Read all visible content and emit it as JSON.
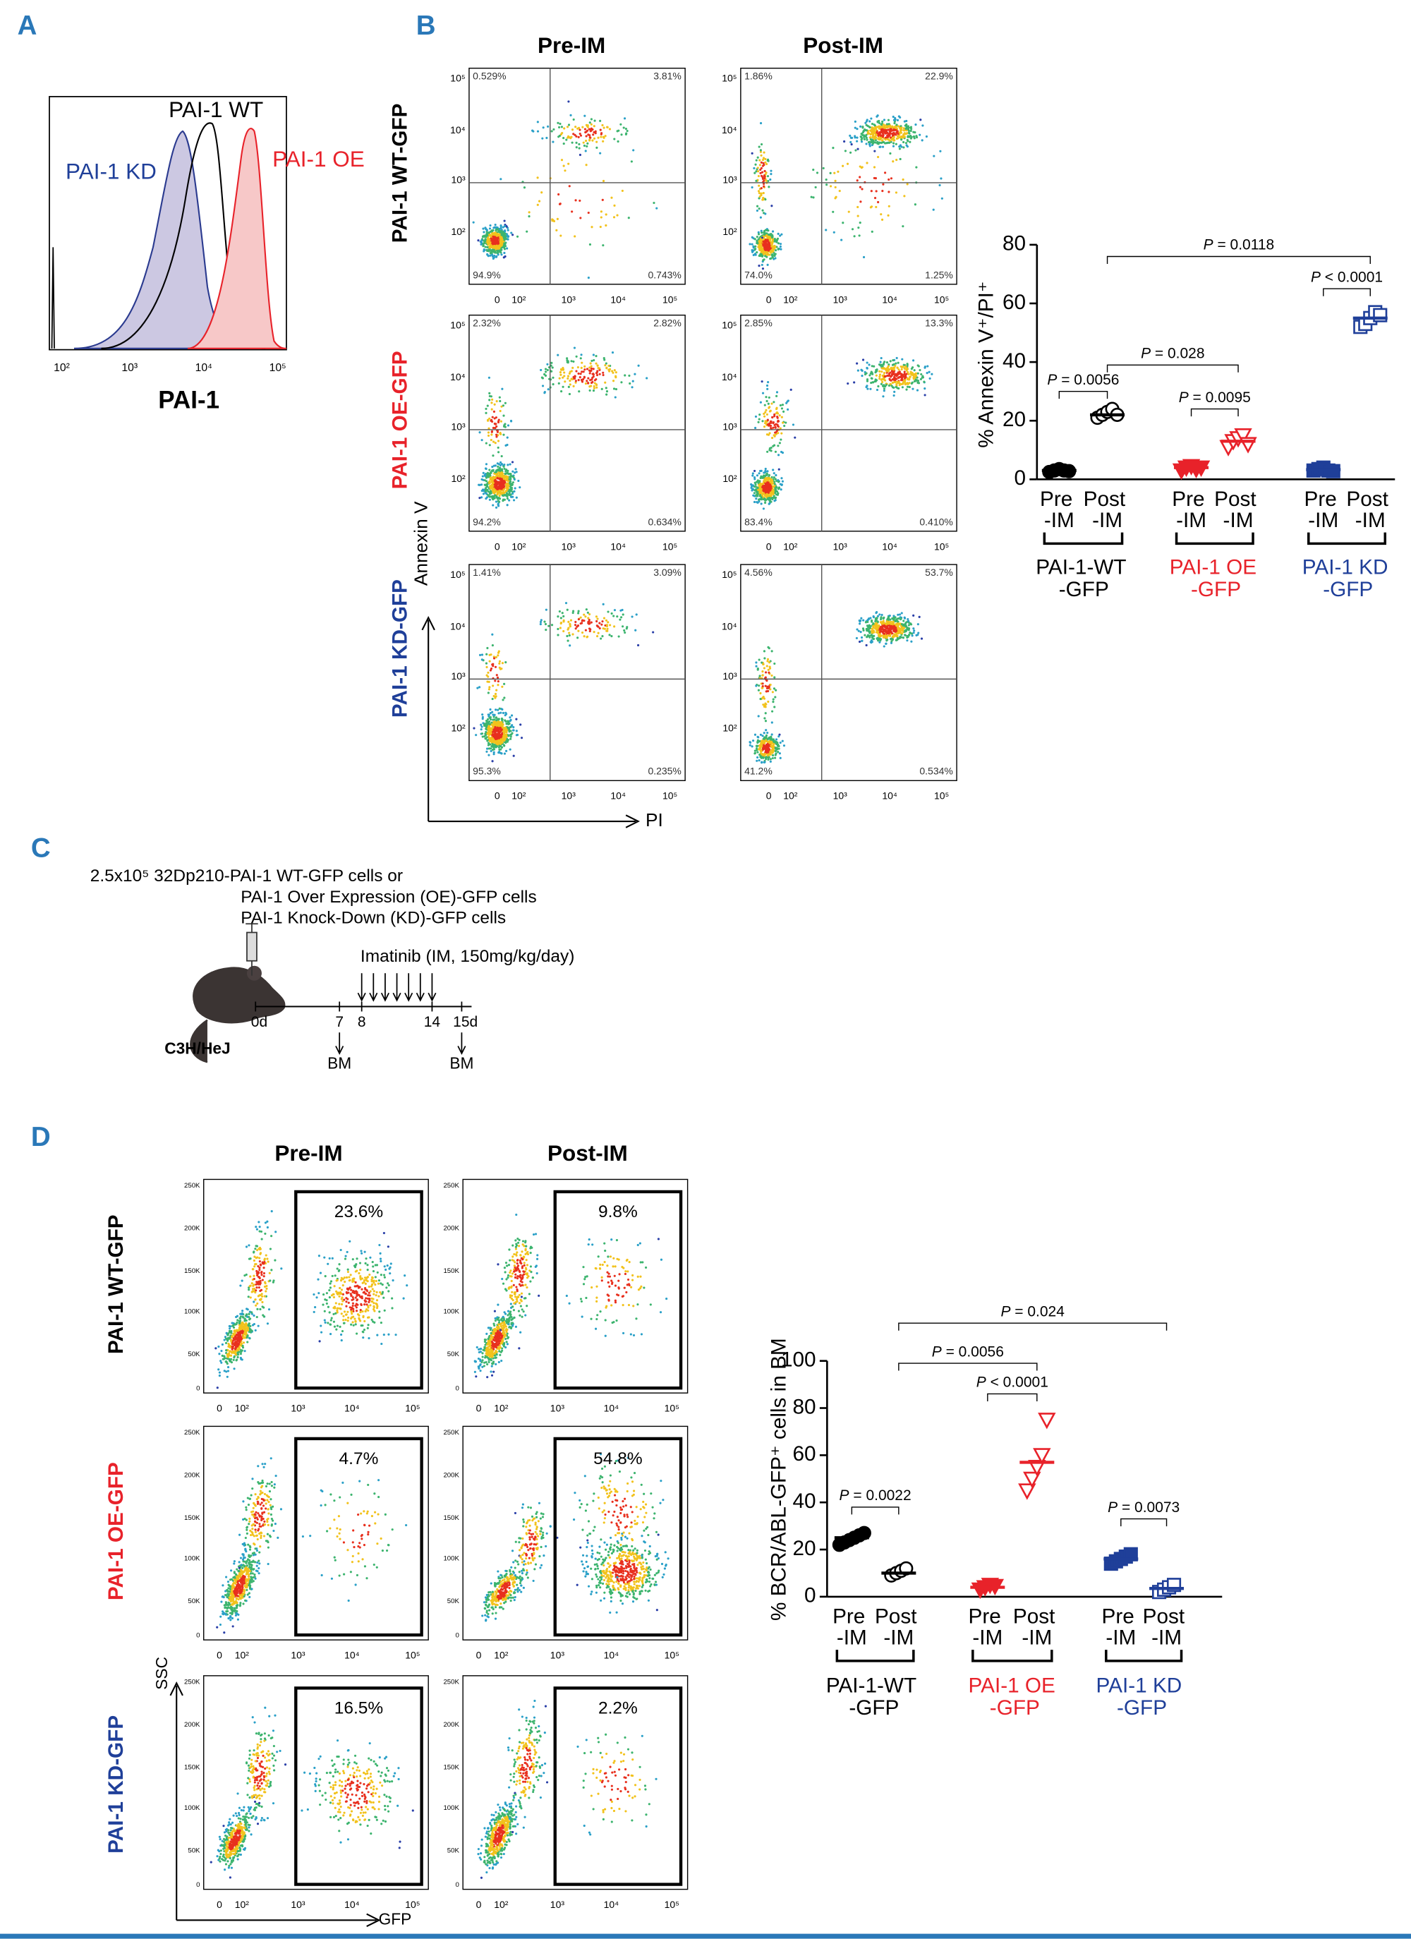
{
  "panel_labels": [
    "A",
    "B",
    "C",
    "D"
  ],
  "panel_a": {
    "legend": [
      "PAI-1 WT",
      "PAI-1 KD",
      "PAI-1 OE"
    ],
    "legend_colors": [
      "#000000",
      "#1f3f99",
      "#e8222a"
    ],
    "x_label": "PAI-1",
    "x_ticks": [
      "10²",
      "10³",
      "10⁴",
      "10⁵"
    ]
  },
  "panel_b": {
    "column_titles": [
      "Pre-IM",
      "Post-IM"
    ],
    "row_labels": [
      "PAI-1 WT-GFP",
      "PAI-1 OE-GFP",
      "PAI-1 KD-GFP"
    ],
    "row_colors": [
      "#000000",
      "#e8222a",
      "#1f3f99"
    ],
    "y_label": "Annexin V",
    "x_label": "PI",
    "y_ticks": [
      "10⁵",
      "10⁴",
      "10³",
      "10²"
    ],
    "x_ticks": [
      "0",
      "10²",
      "10³",
      "10⁴",
      "10⁵"
    ],
    "quadrants": [
      [
        "0.529%",
        "3.81%",
        "94.9%",
        "0.743%"
      ],
      [
        "1.86%",
        "22.9%",
        "74.0%",
        "1.25%"
      ],
      [
        "2.32%",
        "2.82%",
        "94.2%",
        "0.634%"
      ],
      [
        "2.85%",
        "13.3%",
        "83.4%",
        "0.410%"
      ],
      [
        "1.41%",
        "3.09%",
        "95.3%",
        "0.235%"
      ],
      [
        "4.56%",
        "53.7%",
        "41.2%",
        "0.534%"
      ]
    ]
  },
  "panel_c": {
    "lines": [
      "2.5x10⁵ 32Dp210-PAI-1 WT-GFP cells or",
      "PAI-1 Over Expression (OE)-GFP cells",
      "PAI-1 Knock-Down (KD)-GFP cells"
    ],
    "treatment": "Imatinib (IM, 150mg/kg/day)",
    "days": [
      "0d",
      "7",
      "8",
      "14",
      "15d"
    ],
    "samples": [
      "BM",
      "BM"
    ],
    "strain": "C3H/HeJ"
  },
  "panel_d": {
    "column_titles": [
      "Pre-IM",
      "Post-IM"
    ],
    "row_labels": [
      "PAI-1 WT-GFP",
      "PAI-1 OE-GFP",
      "PAI-1 KD-GFP"
    ],
    "row_colors": [
      "#000000",
      "#e8222a",
      "#1f3f99"
    ],
    "y_label": "SSC",
    "x_label": "GFP",
    "y_ticks": [
      "250K",
      "200K",
      "150K",
      "100K",
      "50K",
      "0"
    ],
    "x_ticks": [
      "0",
      "10²",
      "10³",
      "10⁴",
      "10⁵"
    ],
    "gates": [
      "23.6%",
      "9.8%",
      "4.7%",
      "54.8%",
      "16.5%",
      "2.2%"
    ]
  },
  "chart_data": [
    {
      "type": "scatter",
      "y_label": "% Annexin V⁺/PI⁺",
      "categories": [
        "Pre -IM",
        "Post -IM",
        "Pre -IM",
        "Post -IM",
        "Pre -IM",
        "Post -IM"
      ],
      "groups": [
        {
          "name": "PAI-1-WT -GFP",
          "color": "#000000"
        },
        {
          "name": "PAI-1 OE -GFP",
          "color": "#e8222a"
        },
        {
          "name": "PAI-1 KD -GFP",
          "color": "#1f3f99"
        }
      ],
      "ylim": [
        0,
        80
      ],
      "yticks": [
        0,
        20,
        40,
        60,
        80
      ],
      "series": [
        {
          "color": "#000000",
          "marker": "circle",
          "filled": true,
          "values": [
            2.5,
            3,
            3.5,
            3,
            2.8
          ],
          "mean": 3
        },
        {
          "color": "#000000",
          "marker": "circle",
          "filled": false,
          "values": [
            21,
            22,
            23,
            24,
            22
          ],
          "mean": 22
        },
        {
          "color": "#e8222a",
          "marker": "triangle",
          "filled": true,
          "values": [
            3,
            4,
            4.5,
            3.5,
            4
          ],
          "mean": 4
        },
        {
          "color": "#e8222a",
          "marker": "triangle",
          "filled": false,
          "values": [
            11,
            13,
            14,
            15,
            12
          ],
          "mean": 13
        },
        {
          "color": "#1f3f99",
          "marker": "square",
          "filled": true,
          "values": [
            3,
            3.5,
            4,
            3,
            2.8
          ],
          "mean": 3.3
        },
        {
          "color": "#1f3f99",
          "marker": "square",
          "filled": false,
          "values": [
            52,
            53,
            55,
            57,
            56
          ],
          "mean": 55
        }
      ],
      "annotations": [
        "P = 0.0056",
        "P = 0.0095",
        "P = 0.028",
        "P < 0.0001",
        "P = 0.0118"
      ]
    },
    {
      "type": "scatter",
      "y_label": "% BCR/ABL-GFP⁺ cells in BM",
      "categories": [
        "Pre -IM",
        "Post -IM",
        "Pre -IM",
        "Post -IM",
        "Pre -IM",
        "Post -IM"
      ],
      "groups": [
        {
          "name": "PAI-1-WT -GFP",
          "color": "#000000"
        },
        {
          "name": "PAI-1 OE -GFP",
          "color": "#e8222a"
        },
        {
          "name": "PAI-1 KD -GFP",
          "color": "#1f3f99"
        }
      ],
      "ylim": [
        0,
        100
      ],
      "yticks": [
        0,
        20,
        40,
        60,
        80,
        100
      ],
      "series": [
        {
          "color": "#000000",
          "marker": "circle",
          "filled": true,
          "values": [
            22,
            23,
            24,
            25,
            26,
            27
          ],
          "mean": 25
        },
        {
          "color": "#000000",
          "marker": "circle",
          "filled": false,
          "values": [
            9,
            10,
            11,
            12
          ],
          "mean": 10
        },
        {
          "color": "#e8222a",
          "marker": "triangle",
          "filled": true,
          "values": [
            3,
            4,
            5,
            4.5
          ],
          "mean": 4
        },
        {
          "color": "#e8222a",
          "marker": "triangle",
          "filled": false,
          "values": [
            45,
            50,
            55,
            60,
            75
          ],
          "mean": 57
        },
        {
          "color": "#1f3f99",
          "marker": "square",
          "filled": true,
          "values": [
            14,
            15,
            16,
            17,
            18
          ],
          "mean": 16
        },
        {
          "color": "#1f3f99",
          "marker": "square",
          "filled": false,
          "values": [
            2,
            3,
            4,
            5
          ],
          "mean": 3.5
        }
      ],
      "annotations": [
        "P = 0.0022",
        "P < 0.0001",
        "P = 0.0056",
        "P = 0.024",
        "P = 0.0073"
      ]
    }
  ]
}
